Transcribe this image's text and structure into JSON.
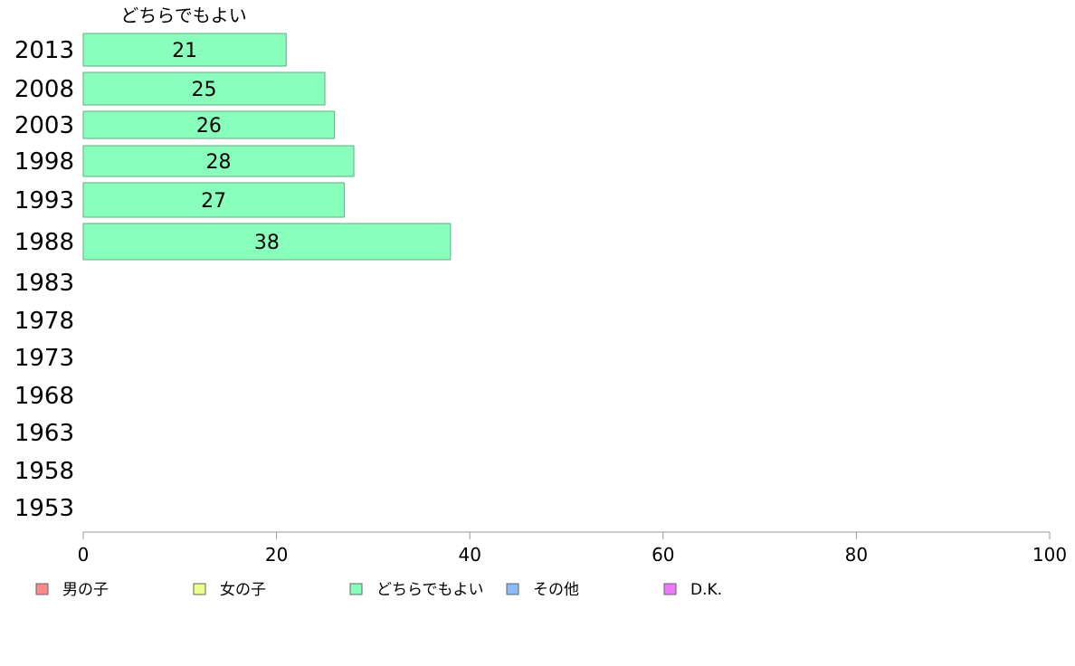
{
  "chart_data": {
    "type": "bar",
    "orientation": "horizontal",
    "series_title": "どちらでもよい",
    "categories": [
      "2013",
      "2008",
      "2003",
      "1998",
      "1993",
      "1988",
      "1983",
      "1978",
      "1973",
      "1968",
      "1963",
      "1958",
      "1953"
    ],
    "series": [
      {
        "name": "どちらでもよい",
        "color": "#88ffbb",
        "values": [
          21,
          25,
          26,
          28,
          27,
          38,
          null,
          null,
          null,
          null,
          null,
          null,
          null
        ],
        "labels": [
          "21",
          "25",
          "26",
          "28",
          "27",
          "38",
          "",
          "",
          "",
          "",
          "",
          "",
          ""
        ]
      }
    ],
    "xlim": [
      0,
      100
    ],
    "xticks": [
      "0",
      "20",
      "40",
      "60",
      "80",
      "100"
    ],
    "grid": false,
    "legend_position": "bottom",
    "legend": [
      {
        "label": "男の子",
        "color": "#ff8888"
      },
      {
        "label": "女の子",
        "color": "#eeff88"
      },
      {
        "label": "どちらでもよい",
        "color": "#88ffbb"
      },
      {
        "label": "その他",
        "color": "#88bbff"
      },
      {
        "label": "D.K.",
        "color": "#ee77ff"
      }
    ]
  }
}
